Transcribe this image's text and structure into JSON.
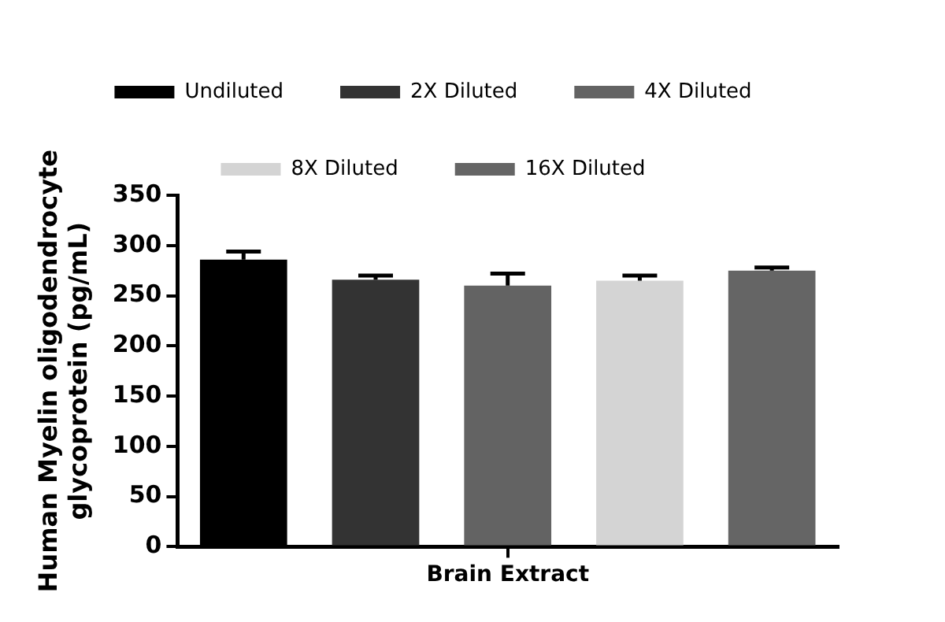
{
  "chart_data": {
    "type": "bar",
    "categories": [
      "Brain Extract"
    ],
    "ylabel": "Human Myelin oligodendrocyte\nglycoprotein (pg/mL)",
    "series": [
      {
        "name": "Undiluted",
        "color": "#000000",
        "values": [
          286
        ],
        "errors": [
          [
            286,
            294
          ]
        ]
      },
      {
        "name": "2X Diluted",
        "color": "#333333",
        "values": [
          266
        ],
        "errors": [
          [
            266,
            270
          ]
        ]
      },
      {
        "name": "4X Diluted",
        "color": "#636363",
        "values": [
          260
        ],
        "errors": [
          [
            260,
            272
          ]
        ]
      },
      {
        "name": "8X Diluted",
        "color": "#d4d4d4",
        "values": [
          265
        ],
        "errors": [
          [
            265,
            270
          ]
        ]
      },
      {
        "name": "16X Diluted",
        "color": "#656565",
        "values": [
          275
        ],
        "errors": [
          [
            275,
            278
          ]
        ]
      }
    ],
    "ylim": [
      0,
      350
    ],
    "yticks": [
      0,
      50,
      100,
      150,
      200,
      250,
      300,
      350
    ],
    "grid": false,
    "legend": "top"
  }
}
